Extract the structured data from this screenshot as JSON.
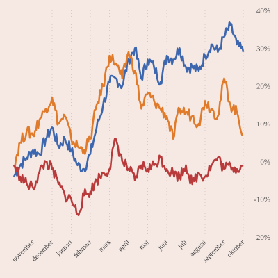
{
  "chart_data": {
    "type": "line",
    "title": "",
    "xlabel": "",
    "ylabel": "",
    "y_unit": "%",
    "ylim": [
      -20,
      40
    ],
    "yticks": [
      "40%",
      "30%",
      "20%",
      "10%",
      "0%",
      "-10%",
      "-20%"
    ],
    "ytick_values": [
      40,
      30,
      20,
      10,
      0,
      -10,
      -20
    ],
    "y_axis_side": "right",
    "grid": "vertical dotted",
    "legend": "none",
    "x_range": [
      0,
      12
    ],
    "x_tick_values": [
      1,
      2,
      3,
      4,
      5,
      6,
      7,
      8,
      9,
      10,
      11,
      12
    ],
    "categories": [
      "november",
      "december",
      "januari",
      "februari",
      "mars",
      "april",
      "maj",
      "juni",
      "juli",
      "augusti",
      "september",
      "oktober"
    ],
    "series": [
      {
        "color": "#3c66ae",
        "x": [
          0,
          0.33,
          0.67,
          1,
          1.33,
          1.67,
          2,
          2.33,
          2.67,
          3,
          3.33,
          3.67,
          4,
          4.33,
          4.67,
          5,
          5.33,
          5.67,
          6,
          6.33,
          6.67,
          7,
          7.33,
          7.67,
          8,
          8.33,
          8.67,
          9,
          9.33,
          9.67,
          10,
          10.33,
          10.67,
          11,
          11.33,
          11.67,
          12
        ],
        "values": [
          -4,
          -1,
          1,
          3,
          2,
          6,
          9,
          4,
          6,
          3,
          -1,
          -2,
          2,
          9,
          15,
          21,
          22,
          20,
          27,
          30,
          22,
          27,
          25,
          21,
          28,
          27,
          30,
          25,
          25,
          24,
          28,
          31,
          29,
          33,
          36,
          31,
          29
        ]
      },
      {
        "color": "#e07b2c",
        "x": [
          0,
          0.33,
          0.67,
          1,
          1.33,
          1.67,
          2,
          2.33,
          2.67,
          3,
          3.33,
          3.67,
          4,
          4.33,
          4.67,
          5,
          5.33,
          5.67,
          6,
          6.33,
          6.67,
          7,
          7.33,
          7.67,
          8,
          8.33,
          8.67,
          9,
          9.33,
          9.67,
          10,
          10.33,
          10.67,
          11,
          11.33,
          11.67,
          12
        ],
        "values": [
          -1,
          5,
          8,
          7,
          11,
          14,
          17,
          10,
          12,
          6,
          4,
          3,
          6,
          15,
          20,
          28,
          26,
          22,
          29,
          24,
          14,
          18,
          16,
          14,
          12,
          6,
          14,
          13,
          12,
          10,
          16,
          14,
          12,
          22,
          15,
          13,
          7
        ]
      },
      {
        "color": "#b83a3a",
        "x": [
          0,
          0.33,
          0.67,
          1,
          1.33,
          1.67,
          2,
          2.33,
          2.67,
          3,
          3.33,
          3.67,
          4,
          4.33,
          4.67,
          5,
          5.33,
          5.67,
          6,
          6.33,
          6.67,
          7,
          7.33,
          7.67,
          8,
          8.33,
          8.67,
          9,
          9.33,
          9.67,
          10,
          10.33,
          10.67,
          11,
          11.33,
          11.67,
          12
        ],
        "values": [
          -1,
          -4,
          -6,
          -7,
          -3,
          0,
          -2,
          -6,
          -9,
          -10,
          -14,
          -9,
          -8,
          -5,
          -3,
          -2,
          6,
          0,
          -2,
          -5,
          -1,
          -2,
          -1,
          1,
          -2,
          -3,
          -4,
          -1,
          -6,
          -3,
          -4,
          -1,
          1,
          -2,
          -1,
          -2,
          -1
        ]
      }
    ]
  }
}
